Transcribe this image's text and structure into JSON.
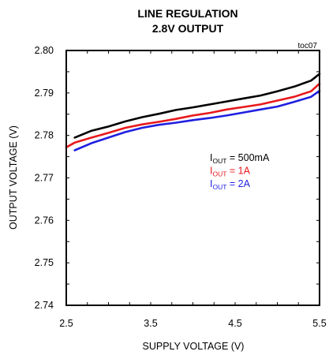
{
  "chart_data": {
    "type": "line",
    "title": "LINE REGULATION",
    "subtitle": "2.8V OUTPUT",
    "tag": "toc07",
    "xlabel": "SUPPLY VOLTAGE (V)",
    "ylabel": "OUTPUT VOLTAGE (V)",
    "xlim": [
      2.5,
      5.5
    ],
    "ylim": [
      2.74,
      2.8
    ],
    "xticks": [
      "2.5",
      "3.5",
      "4.5",
      "5.5"
    ],
    "yticks": [
      "2.80",
      "2.79",
      "2.78",
      "2.77",
      "2.76",
      "2.75",
      "2.74"
    ],
    "grid": false,
    "legend_position": "center-right",
    "series": [
      {
        "name_main": "I",
        "name_sub": "OUT",
        "name_tail": " = 500mA",
        "color": "#000000",
        "x": [
          2.6,
          2.8,
          3.0,
          3.2,
          3.4,
          3.6,
          3.8,
          4.0,
          4.2,
          4.4,
          4.6,
          4.8,
          5.0,
          5.2,
          5.4,
          5.5
        ],
        "y": [
          2.7795,
          2.7811,
          2.7821,
          2.7833,
          2.7843,
          2.7851,
          2.786,
          2.7866,
          2.7873,
          2.788,
          2.7887,
          2.7894,
          2.7904,
          2.7915,
          2.7929,
          2.7945
        ]
      },
      {
        "name_main": "I",
        "name_sub": "OUT",
        "name_tail": " = 1A",
        "color": "#e8191c",
        "x": [
          2.5,
          2.6,
          2.8,
          3.0,
          3.2,
          3.4,
          3.6,
          3.8,
          4.0,
          4.2,
          4.4,
          4.6,
          4.8,
          5.0,
          5.2,
          5.4,
          5.5
        ],
        "y": [
          2.7772,
          2.7783,
          2.7795,
          2.7806,
          2.7818,
          2.7826,
          2.7832,
          2.7839,
          2.7847,
          2.7853,
          2.7861,
          2.7867,
          2.7873,
          2.7882,
          2.7891,
          2.7904,
          2.7922
        ]
      },
      {
        "name_main": "I",
        "name_sub": "OUT",
        "name_tail": " = 2A",
        "color": "#1f1fe0",
        "x": [
          2.6,
          2.8,
          3.0,
          3.2,
          3.4,
          3.6,
          3.8,
          4.0,
          4.2,
          4.4,
          4.6,
          4.8,
          5.0,
          5.2,
          5.4,
          5.5
        ],
        "y": [
          2.7765,
          2.7782,
          2.7795,
          2.7808,
          2.7818,
          2.7825,
          2.783,
          2.7836,
          2.7841,
          2.7847,
          2.7854,
          2.7861,
          2.7868,
          2.7879,
          2.7891,
          2.7905
        ]
      }
    ]
  }
}
